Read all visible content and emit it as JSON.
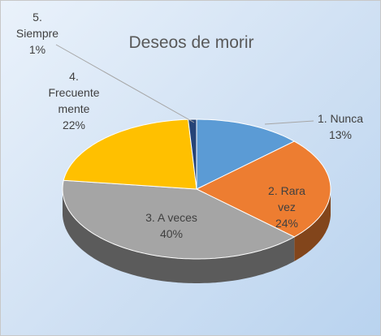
{
  "chart_data": {
    "type": "pie",
    "title": "Deseos de morir",
    "categories": [
      "1. Nunca",
      "2. Rara vez",
      "3. A veces",
      "4. Frecuente mente",
      "5. Siempre"
    ],
    "values": [
      13,
      24,
      40,
      22,
      1
    ],
    "value_labels": [
      "13%",
      "24%",
      "40%",
      "22%",
      "1%"
    ],
    "colors": [
      "#5b9bd5",
      "#ed7d31",
      "#a5a5a5",
      "#ffc000",
      "#264478"
    ]
  }
}
